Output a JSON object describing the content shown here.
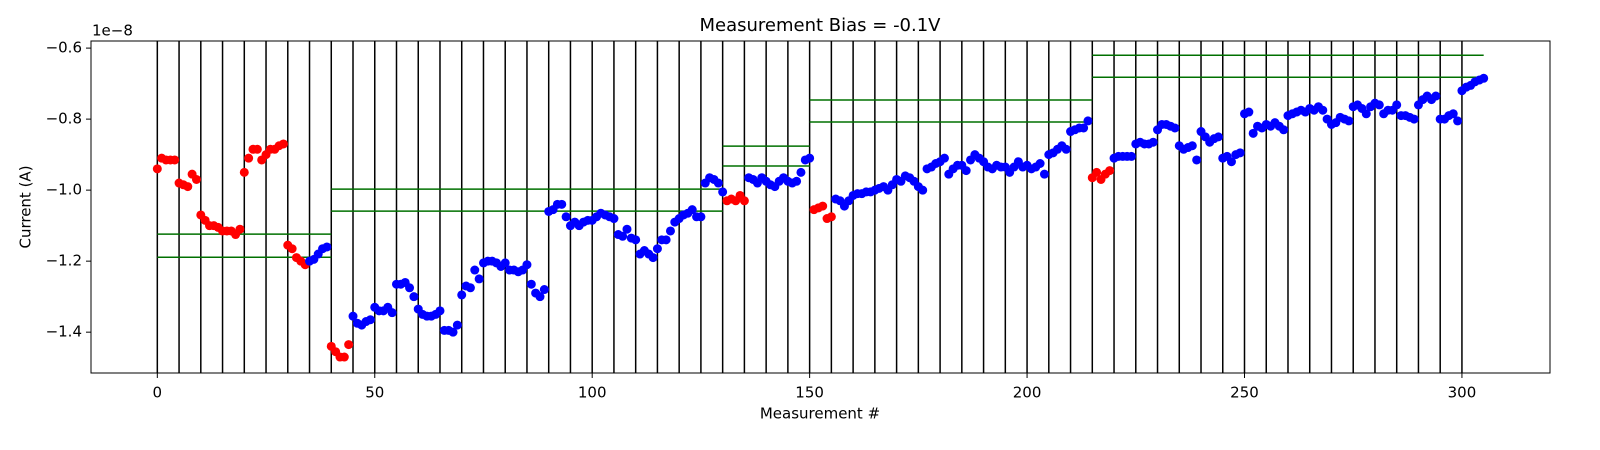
{
  "chart_data": {
    "type": "scatter",
    "title": "Measurement Bias = -0.1V",
    "x_label": "Measurement #",
    "y_label": "Current (A)",
    "y_offset_label": "1e−8",
    "xlim": [
      -15.25,
      320.25
    ],
    "ylim": [
      -1.515,
      -0.58
    ],
    "xticks": [
      0,
      50,
      100,
      150,
      200,
      250,
      300
    ],
    "yticks": [
      {
        "value": -1.4,
        "label": "−1.4"
      },
      {
        "value": -1.2,
        "label": "−1.2"
      },
      {
        "value": -1.0,
        "label": "−1.0"
      },
      {
        "value": -0.8,
        "label": "−0.8"
      },
      {
        "value": -0.6,
        "label": "−0.6"
      }
    ],
    "grid": false,
    "vline_color": "#000000",
    "vlines": [
      0,
      5,
      10,
      15,
      20,
      25,
      30,
      35,
      40,
      45,
      50,
      55,
      60,
      65,
      70,
      75,
      80,
      85,
      90,
      95,
      100,
      105,
      110,
      115,
      120,
      125,
      130,
      135,
      140,
      145,
      150,
      155,
      160,
      165,
      170,
      175,
      180,
      185,
      190,
      195,
      200,
      205,
      210,
      215,
      220,
      225,
      230,
      235,
      240,
      245,
      250,
      255,
      260,
      265,
      270,
      275,
      280,
      285,
      290,
      295,
      300
    ],
    "hline_color": "#007000",
    "hlines": [
      {
        "y": -1.124,
        "xmin": 0,
        "xmax": 40
      },
      {
        "y": -1.189,
        "xmin": 0,
        "xmax": 40
      },
      {
        "y": -0.997,
        "xmin": 40,
        "xmax": 130
      },
      {
        "y": -1.059,
        "xmin": 40,
        "xmax": 130
      },
      {
        "y": -0.876,
        "xmin": 130,
        "xmax": 150
      },
      {
        "y": -0.932,
        "xmin": 130,
        "xmax": 150
      },
      {
        "y": -0.746,
        "xmin": 150,
        "xmax": 215
      },
      {
        "y": -0.808,
        "xmin": 150,
        "xmax": 215
      },
      {
        "y": -0.62,
        "xmin": 215,
        "xmax": 305
      },
      {
        "y": -0.682,
        "xmin": 215,
        "xmax": 305
      }
    ],
    "series": [
      {
        "color": "#ff0000",
        "x": [
          0,
          1,
          2,
          3,
          4,
          5,
          6,
          7,
          8,
          9,
          10,
          11,
          12,
          13,
          14,
          15,
          16,
          17,
          18,
          19,
          20,
          21,
          22,
          23,
          24,
          25,
          26,
          27,
          28,
          29,
          30,
          31,
          32,
          33,
          34,
          40,
          41,
          42,
          43,
          44,
          131,
          132,
          133,
          134,
          135,
          151,
          152,
          153,
          154,
          155,
          215,
          216,
          217,
          218,
          219
        ],
        "values": [
          -0.94,
          -0.91,
          -0.915,
          -0.915,
          -0.915,
          -0.98,
          -0.985,
          -0.99,
          -0.955,
          -0.97,
          -1.07,
          -1.085,
          -1.1,
          -1.1,
          -1.105,
          -1.115,
          -1.115,
          -1.115,
          -1.125,
          -1.11,
          -0.95,
          -0.91,
          -0.885,
          -0.885,
          -0.915,
          -0.9,
          -0.885,
          -0.885,
          -0.875,
          -0.87,
          -1.155,
          -1.165,
          -1.19,
          -1.2,
          -1.21,
          -1.44,
          -1.455,
          -1.47,
          -1.47,
          -1.435,
          -1.03,
          -1.025,
          -1.03,
          -1.015,
          -1.03,
          -1.055,
          -1.05,
          -1.045,
          -1.08,
          -1.075,
          -0.965,
          -0.95,
          -0.97,
          -0.955,
          -0.945
        ]
      },
      {
        "color": "#0000ff",
        "x": [
          35,
          36,
          37,
          38,
          39,
          45,
          46,
          47,
          48,
          49,
          50,
          51,
          52,
          53,
          54,
          55,
          56,
          57,
          58,
          59,
          60,
          61,
          62,
          63,
          64,
          65,
          66,
          67,
          68,
          69,
          70,
          71,
          72,
          73,
          74,
          75,
          76,
          77,
          78,
          79,
          80,
          81,
          82,
          83,
          84,
          85,
          86,
          87,
          88,
          89,
          90,
          91,
          92,
          93,
          94,
          95,
          96,
          97,
          98,
          99,
          100,
          101,
          102,
          103,
          104,
          105,
          106,
          107,
          108,
          109,
          110,
          111,
          112,
          113,
          114,
          115,
          116,
          117,
          118,
          119,
          120,
          121,
          122,
          123,
          124,
          125,
          126,
          127,
          128,
          129,
          130,
          136,
          137,
          138,
          139,
          140,
          141,
          142,
          143,
          144,
          145,
          146,
          147,
          148,
          149,
          150,
          156,
          157,
          158,
          159,
          160,
          161,
          162,
          163,
          164,
          165,
          166,
          167,
          168,
          169,
          170,
          171,
          172,
          173,
          174,
          175,
          176,
          177,
          178,
          179,
          180,
          181,
          182,
          183,
          184,
          185,
          186,
          187,
          188,
          189,
          190,
          191,
          192,
          193,
          194,
          195,
          196,
          197,
          198,
          199,
          200,
          201,
          202,
          203,
          204,
          205,
          206,
          207,
          208,
          209,
          210,
          211,
          212,
          213,
          214,
          220,
          221,
          222,
          223,
          224,
          225,
          226,
          227,
          228,
          229,
          230,
          231,
          232,
          233,
          234,
          235,
          236,
          237,
          238,
          239,
          240,
          241,
          242,
          243,
          244,
          245,
          246,
          247,
          248,
          249,
          250,
          251,
          252,
          253,
          254,
          255,
          256,
          257,
          258,
          259,
          260,
          261,
          262,
          263,
          264,
          265,
          266,
          267,
          268,
          269,
          270,
          271,
          272,
          273,
          274,
          275,
          276,
          277,
          278,
          279,
          280,
          281,
          282,
          283,
          284,
          285,
          286,
          287,
          288,
          289,
          290,
          291,
          292,
          293,
          294,
          295,
          296,
          297,
          298,
          299,
          300,
          301,
          302,
          303,
          304,
          305
        ],
        "values": [
          -1.2,
          -1.195,
          -1.18,
          -1.165,
          -1.16,
          -1.355,
          -1.375,
          -1.38,
          -1.37,
          -1.365,
          -1.33,
          -1.34,
          -1.34,
          -1.33,
          -1.345,
          -1.265,
          -1.265,
          -1.26,
          -1.275,
          -1.3,
          -1.335,
          -1.35,
          -1.355,
          -1.355,
          -1.35,
          -1.34,
          -1.395,
          -1.395,
          -1.4,
          -1.38,
          -1.295,
          -1.27,
          -1.275,
          -1.225,
          -1.25,
          -1.205,
          -1.2,
          -1.2,
          -1.205,
          -1.215,
          -1.205,
          -1.225,
          -1.225,
          -1.23,
          -1.225,
          -1.21,
          -1.265,
          -1.29,
          -1.3,
          -1.28,
          -1.06,
          -1.055,
          -1.04,
          -1.04,
          -1.075,
          -1.1,
          -1.09,
          -1.1,
          -1.09,
          -1.085,
          -1.085,
          -1.075,
          -1.065,
          -1.07,
          -1.075,
          -1.08,
          -1.125,
          -1.13,
          -1.11,
          -1.135,
          -1.14,
          -1.18,
          -1.17,
          -1.18,
          -1.19,
          -1.165,
          -1.14,
          -1.14,
          -1.115,
          -1.09,
          -1.08,
          -1.07,
          -1.065,
          -1.055,
          -1.075,
          -1.075,
          -0.98,
          -0.965,
          -0.97,
          -0.98,
          -1.005,
          -0.965,
          -0.97,
          -0.98,
          -0.965,
          -0.975,
          -0.985,
          -0.99,
          -0.975,
          -0.965,
          -0.975,
          -0.98,
          -0.975,
          -0.95,
          -0.915,
          -0.91,
          -1.025,
          -1.03,
          -1.045,
          -1.03,
          -1.015,
          -1.01,
          -1.01,
          -1.005,
          -1.005,
          -1.0,
          -0.995,
          -0.99,
          -1.0,
          -0.985,
          -0.97,
          -0.975,
          -0.96,
          -0.965,
          -0.975,
          -0.99,
          -1.0,
          -0.94,
          -0.935,
          -0.925,
          -0.92,
          -0.91,
          -0.955,
          -0.94,
          -0.93,
          -0.93,
          -0.945,
          -0.915,
          -0.9,
          -0.91,
          -0.92,
          -0.935,
          -0.94,
          -0.93,
          -0.935,
          -0.935,
          -0.95,
          -0.935,
          -0.92,
          -0.935,
          -0.93,
          -0.94,
          -0.935,
          -0.925,
          -0.955,
          -0.9,
          -0.895,
          -0.885,
          -0.875,
          -0.885,
          -0.835,
          -0.83,
          -0.825,
          -0.825,
          -0.805,
          -0.91,
          -0.905,
          -0.905,
          -0.905,
          -0.905,
          -0.87,
          -0.865,
          -0.87,
          -0.87,
          -0.865,
          -0.83,
          -0.815,
          -0.815,
          -0.82,
          -0.825,
          -0.875,
          -0.885,
          -0.88,
          -0.875,
          -0.915,
          -0.835,
          -0.85,
          -0.865,
          -0.855,
          -0.85,
          -0.91,
          -0.905,
          -0.92,
          -0.9,
          -0.895,
          -0.785,
          -0.78,
          -0.84,
          -0.82,
          -0.825,
          -0.815,
          -0.82,
          -0.81,
          -0.82,
          -0.83,
          -0.79,
          -0.785,
          -0.78,
          -0.775,
          -0.78,
          -0.77,
          -0.775,
          -0.765,
          -0.775,
          -0.8,
          -0.815,
          -0.81,
          -0.795,
          -0.8,
          -0.805,
          -0.765,
          -0.76,
          -0.77,
          -0.785,
          -0.765,
          -0.755,
          -0.76,
          -0.785,
          -0.775,
          -0.775,
          -0.76,
          -0.79,
          -0.79,
          -0.795,
          -0.8,
          -0.76,
          -0.745,
          -0.735,
          -0.745,
          -0.735,
          -0.8,
          -0.8,
          -0.79,
          -0.785,
          -0.805,
          -0.72,
          -0.71,
          -0.705,
          -0.695,
          -0.69,
          -0.685
        ]
      }
    ]
  }
}
